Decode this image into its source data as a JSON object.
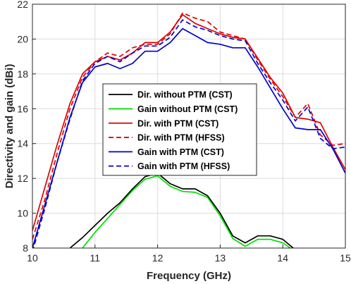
{
  "chart_data": {
    "type": "line",
    "xlabel": "Frequency (GHz)",
    "ylabel": "Directivity and gain (dBi)",
    "xlim": [
      10,
      15
    ],
    "ylim": [
      8,
      22
    ],
    "xticks": [
      "10",
      "11",
      "12",
      "13",
      "14",
      "15"
    ],
    "yticks": [
      "8",
      "10",
      "12",
      "14",
      "16",
      "18",
      "20",
      "22"
    ],
    "grid": true,
    "legend_position": "center",
    "series": [
      {
        "name": "Dir. without PTM (CST)",
        "color": "#000000",
        "dash": "solid",
        "x": [
          10.6,
          10.8,
          11.0,
          11.2,
          11.4,
          11.6,
          11.8,
          12.0,
          12.2,
          12.4,
          12.6,
          12.8,
          13.0,
          13.2,
          13.4,
          13.6,
          13.8,
          14.0,
          14.2
        ],
        "y": [
          8.0,
          8.6,
          9.3,
          10.0,
          10.6,
          11.4,
          12.1,
          12.3,
          11.7,
          11.4,
          11.4,
          11.0,
          10.0,
          8.7,
          8.3,
          8.7,
          8.7,
          8.5,
          7.9
        ]
      },
      {
        "name": "Gain without PTM (CST)",
        "color": "#00e000",
        "dash": "solid",
        "x": [
          10.8,
          11.0,
          11.2,
          11.4,
          11.6,
          11.8,
          12.0,
          12.2,
          12.4,
          12.6,
          12.8,
          13.0,
          13.2,
          13.4,
          13.6,
          13.8,
          14.0,
          14.2
        ],
        "y": [
          8.0,
          8.9,
          9.7,
          10.5,
          11.3,
          11.95,
          12.15,
          11.55,
          11.25,
          11.2,
          10.9,
          9.85,
          8.55,
          8.1,
          8.5,
          8.5,
          8.3,
          7.8
        ]
      },
      {
        "name": "Dir. with PTM (CST)",
        "color": "#e00000",
        "dash": "solid",
        "x": [
          10.0,
          10.2,
          10.4,
          10.6,
          10.8,
          11.0,
          11.2,
          11.4,
          11.6,
          11.8,
          12.0,
          12.2,
          12.4,
          12.6,
          12.8,
          13.0,
          13.2,
          13.4,
          13.6,
          13.8,
          14.0,
          14.2,
          14.4,
          14.6,
          14.8,
          15.0
        ],
        "y": [
          9.0,
          11.5,
          14.0,
          16.3,
          18.0,
          18.7,
          19.0,
          18.8,
          19.2,
          19.8,
          19.8,
          20.4,
          21.4,
          20.9,
          20.6,
          20.3,
          20.1,
          20.0,
          18.9,
          17.8,
          16.9,
          15.5,
          15.4,
          15.2,
          13.8,
          12.5
        ]
      },
      {
        "name": "Dir. with PTM (HFSS)",
        "color": "#e00000",
        "dash": "dashed",
        "x": [
          10.0,
          10.2,
          10.4,
          10.6,
          10.8,
          11.0,
          11.2,
          11.4,
          11.6,
          11.8,
          12.0,
          12.2,
          12.4,
          12.6,
          12.8,
          13.0,
          13.2,
          13.4,
          13.6,
          13.8,
          14.0,
          14.2,
          14.4,
          14.6,
          14.8,
          15.0
        ],
        "y": [
          8.5,
          10.8,
          13.5,
          16.0,
          17.8,
          18.7,
          19.2,
          19.0,
          19.5,
          19.7,
          19.7,
          20.3,
          21.5,
          21.2,
          21.0,
          20.4,
          20.2,
          20.0,
          18.8,
          17.7,
          16.7,
          15.5,
          16.3,
          14.5,
          13.9,
          14.0
        ]
      },
      {
        "name": "Gain with PTM (CST)",
        "color": "#0000d0",
        "dash": "solid",
        "x": [
          10.0,
          10.2,
          10.4,
          10.6,
          10.8,
          11.0,
          11.2,
          11.4,
          11.6,
          11.8,
          12.0,
          12.2,
          12.4,
          12.6,
          12.8,
          13.0,
          13.2,
          13.4,
          13.6,
          13.8,
          14.0,
          14.2,
          14.4,
          14.6,
          14.8,
          15.0
        ],
        "y": [
          8.0,
          10.5,
          13.0,
          15.5,
          17.5,
          18.4,
          18.6,
          18.3,
          18.6,
          19.3,
          19.3,
          19.8,
          20.6,
          20.2,
          19.8,
          19.7,
          19.5,
          19.5,
          18.4,
          17.2,
          16.0,
          14.9,
          14.8,
          14.8,
          13.7,
          12.3
        ]
      },
      {
        "name": "Gain with PTM (HFSS)",
        "color": "#0000d0",
        "dash": "dashed",
        "x": [
          10.0,
          10.2,
          10.4,
          10.6,
          10.8,
          11.0,
          11.2,
          11.4,
          11.6,
          11.8,
          12.0,
          12.2,
          12.4,
          12.6,
          12.8,
          13.0,
          13.2,
          13.4,
          13.6,
          13.8,
          14.0,
          14.2,
          14.4,
          14.6,
          14.8,
          15.0
        ],
        "y": [
          7.8,
          10.3,
          13.0,
          15.4,
          17.6,
          18.6,
          19.0,
          18.7,
          19.2,
          19.6,
          19.6,
          20.1,
          21.1,
          20.7,
          20.5,
          20.2,
          20.0,
          19.9,
          18.6,
          17.5,
          16.5,
          15.3,
          16.1,
          14.3,
          13.7,
          13.8
        ]
      }
    ]
  }
}
